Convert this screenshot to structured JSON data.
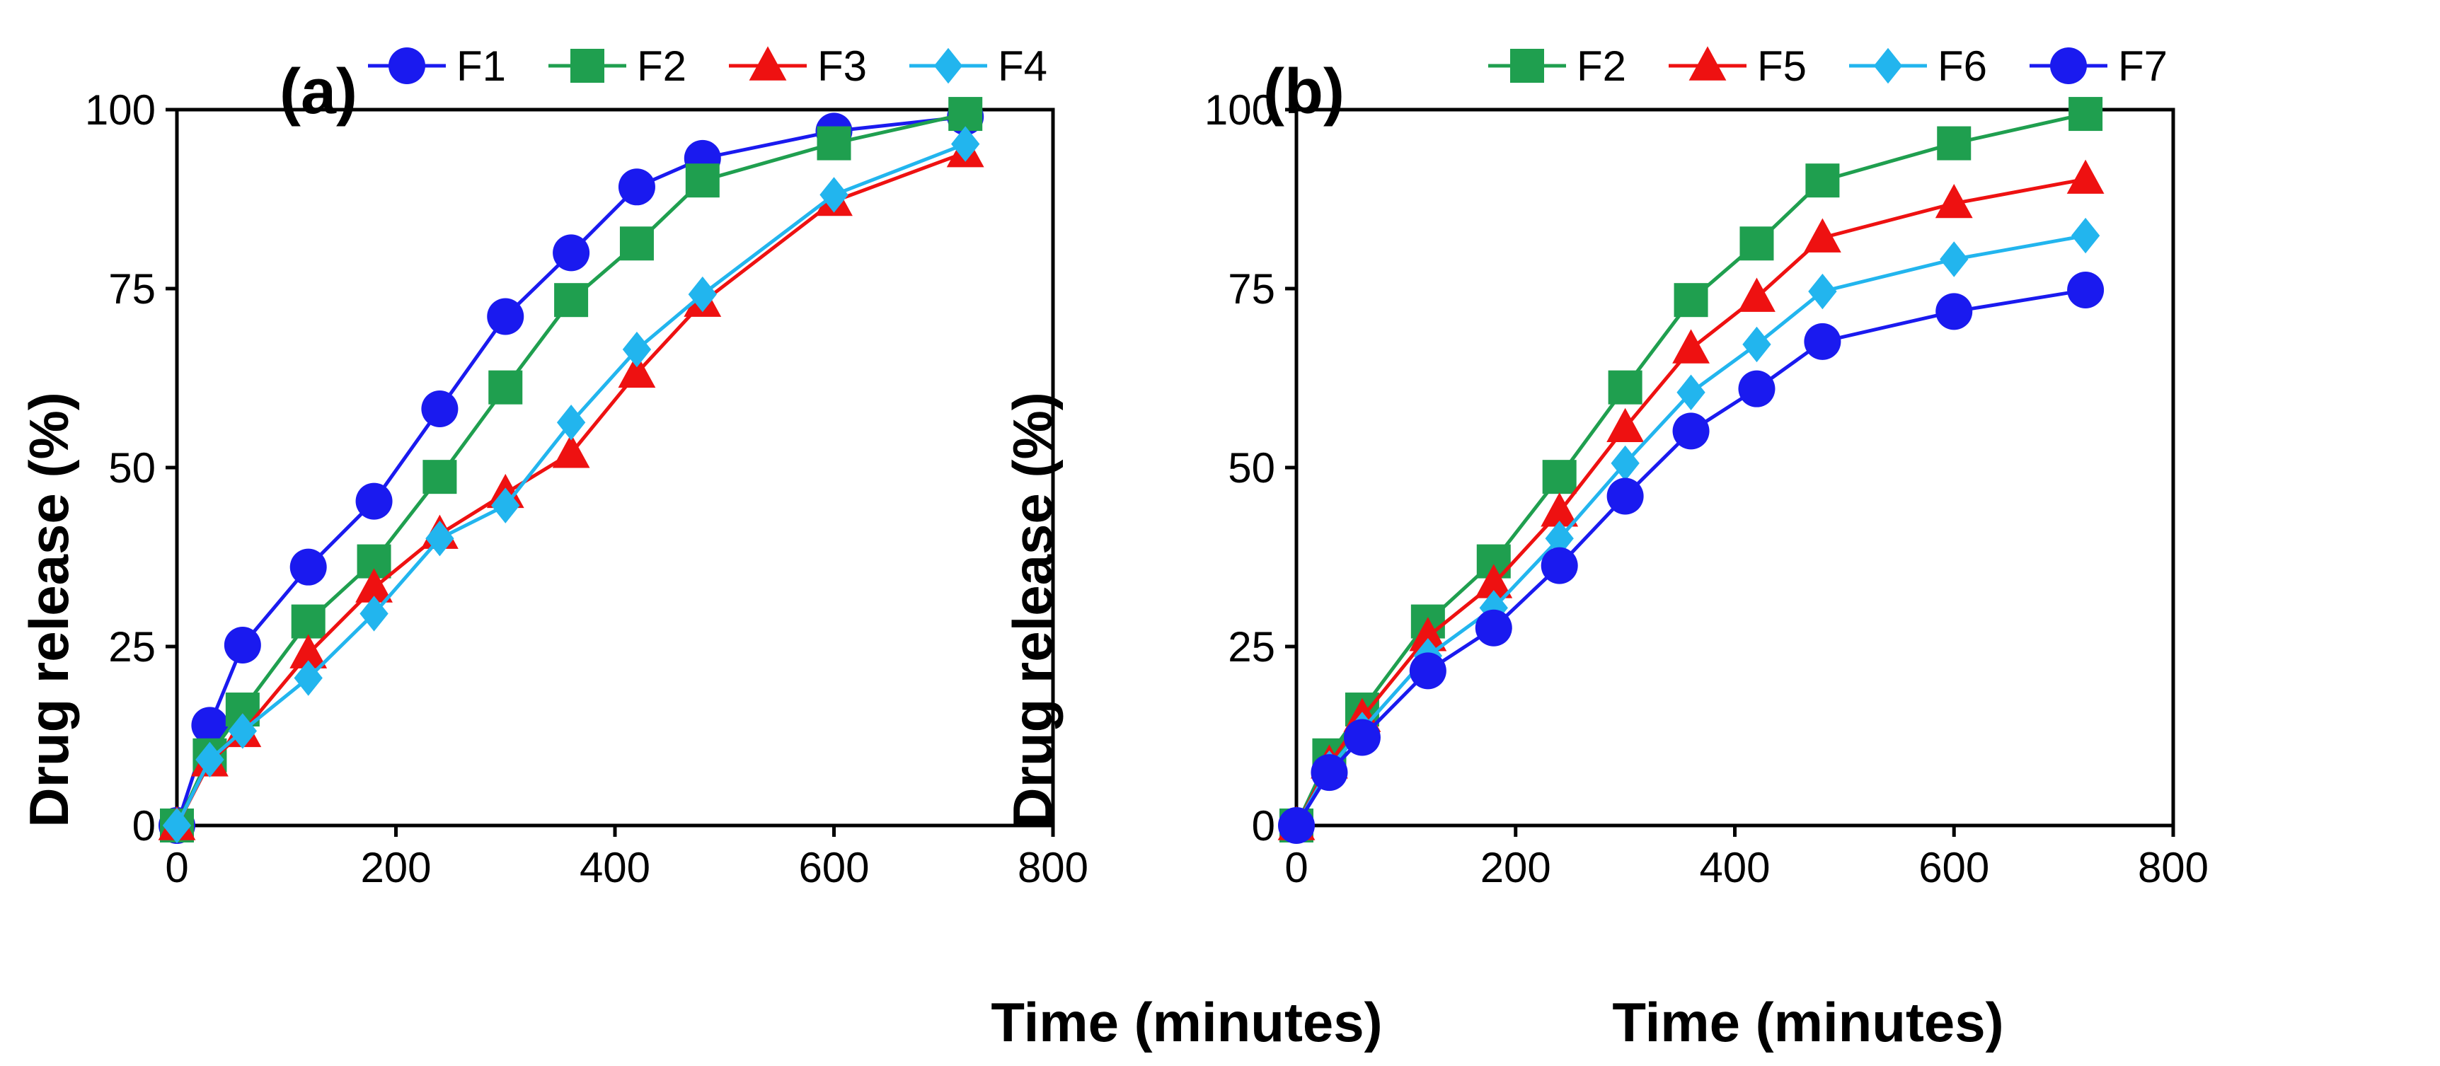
{
  "colors": {
    "F1": "#1a1aef",
    "F2": "#1f9f4f",
    "F3": "#ee1111",
    "F4": "#22b5ee",
    "F5": "#ee1111",
    "F6": "#22b5ee",
    "F7": "#1a1aef"
  },
  "chart_data": [
    {
      "type": "line",
      "panel_label": "(a)",
      "xlabel": "Time (minutes)",
      "ylabel": "Drug release (%)",
      "xlim": [
        0,
        800
      ],
      "ylim": [
        0,
        100
      ],
      "xticks": [
        0,
        200,
        400,
        600,
        800
      ],
      "yticks": [
        0,
        25,
        50,
        75,
        100
      ],
      "grid": false,
      "legend_position": "top",
      "x": [
        0,
        30,
        60,
        120,
        180,
        240,
        300,
        360,
        420,
        480,
        600,
        720
      ],
      "series": [
        {
          "name": "F1",
          "marker": "circle",
          "values": [
            0,
            14,
            25.2,
            36.1,
            45.3,
            58.2,
            71.1,
            80,
            89.2,
            93.2,
            97,
            99
          ]
        },
        {
          "name": "F2",
          "marker": "square",
          "values": [
            0,
            9.8,
            16.2,
            28.5,
            36.9,
            48.7,
            61.2,
            73.4,
            81.3,
            90.1,
            95.3,
            99.4
          ]
        },
        {
          "name": "F3",
          "marker": "triangle",
          "values": [
            0,
            8.9,
            13,
            24,
            33.2,
            40.7,
            46.4,
            52,
            63.2,
            73.1,
            87.2,
            94
          ]
        },
        {
          "name": "F4",
          "marker": "diamond",
          "values": [
            0,
            9.2,
            13.2,
            20.6,
            29.6,
            40.1,
            44.7,
            56.3,
            66.5,
            74.2,
            88.1,
            95.2
          ]
        }
      ]
    },
    {
      "type": "line",
      "panel_label": "(b)",
      "xlabel": "Time (minutes)",
      "ylabel": "Drug release (%)",
      "xlim": [
        0,
        800
      ],
      "ylim": [
        0,
        100
      ],
      "xticks": [
        0,
        200,
        400,
        600,
        800
      ],
      "yticks": [
        0,
        25,
        50,
        75,
        100
      ],
      "grid": false,
      "legend_position": "top",
      "x": [
        0,
        30,
        60,
        120,
        180,
        240,
        300,
        360,
        420,
        480,
        600,
        720
      ],
      "series": [
        {
          "name": "F2",
          "marker": "square",
          "values": [
            0,
            9.8,
            16.2,
            28.5,
            36.9,
            48.7,
            61.2,
            73.4,
            81.3,
            90.1,
            95.3,
            99.4
          ]
        },
        {
          "name": "F5",
          "marker": "triangle",
          "values": [
            0,
            8.6,
            15.1,
            26.4,
            33.8,
            43.8,
            55.6,
            66.6,
            73.8,
            82.1,
            86.9,
            90.3
          ]
        },
        {
          "name": "F6",
          "marker": "diamond",
          "values": [
            0,
            8,
            13.4,
            23.7,
            30.4,
            40.1,
            50.6,
            60.5,
            67.2,
            74.6,
            79.1,
            82.4
          ]
        },
        {
          "name": "F7",
          "marker": "circle",
          "values": [
            0,
            7.4,
            12.3,
            21.6,
            27.6,
            36.3,
            46,
            55.1,
            61,
            67.6,
            71.8,
            74.8
          ]
        }
      ]
    }
  ]
}
